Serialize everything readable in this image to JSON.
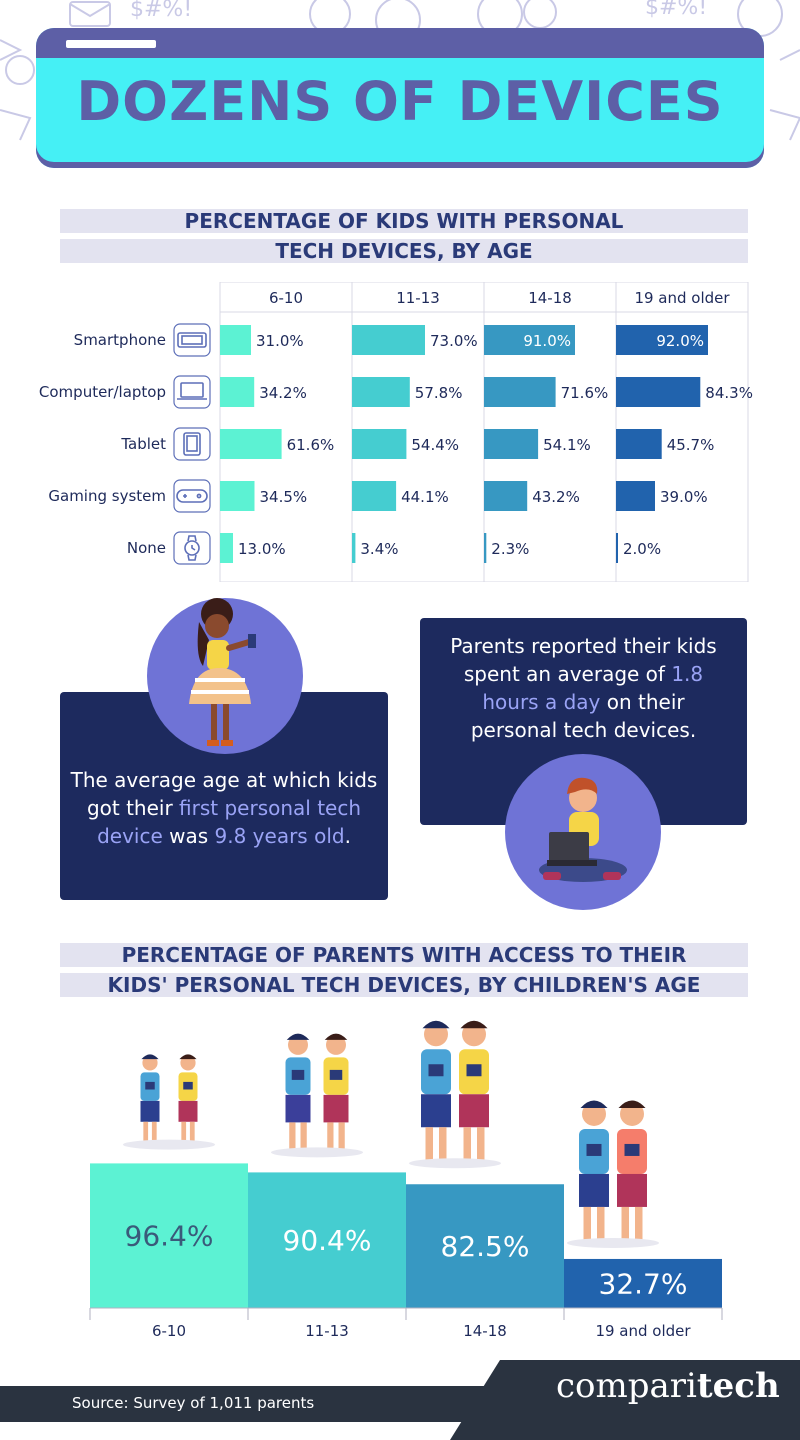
{
  "title": "DOZENS OF DEVICES",
  "section1": {
    "title_line1": "PERCENTAGE OF KIDS WITH PERSONAL",
    "title_line2": "TECH DEVICES, BY AGE"
  },
  "callout_left": {
    "text_a": "The average age at which kids",
    "text_b": "got their ",
    "highlight_a": "first personal tech",
    "highlight_b": "device",
    "text_c": " was ",
    "highlight_c": "9.8 years old",
    "text_d": "."
  },
  "callout_right": {
    "text_a": "Parents reported their kids",
    "text_b": "spent an average of ",
    "highlight_a": "1.8",
    "highlight_b": "hours a day",
    "text_c": " on their",
    "text_d": "personal tech devices."
  },
  "section2": {
    "title_line1": "PERCENTAGE OF PARENTS WITH ACCESS TO THEIR",
    "title_line2": "KIDS' PERSONAL TECH DEVICES, BY CHILDREN'S AGE"
  },
  "chart_data": [
    {
      "type": "bar",
      "orientation": "horizontal",
      "groups": [
        "6-10",
        "11-13",
        "14-18",
        "19 and older"
      ],
      "categories": [
        "Smartphone",
        "Computer/laptop",
        "Tablet",
        "Gaming system",
        "None"
      ],
      "category_icons": [
        "smartphone-icon",
        "laptop-icon",
        "tablet-icon",
        "gamepad-icon",
        "smartwatch-icon"
      ],
      "series": [
        {
          "name": "6-10",
          "values": [
            31.0,
            34.2,
            61.6,
            34.5,
            13.0
          ],
          "labels": [
            "31.0%",
            "34.2%",
            "61.6%",
            "34.5%",
            "13.0%"
          ],
          "color": "#5cf2d3"
        },
        {
          "name": "11-13",
          "values": [
            73.0,
            57.8,
            54.4,
            44.1,
            3.4
          ],
          "labels": [
            "73.0%",
            "57.8%",
            "54.4%",
            "44.1%",
            "3.4%"
          ],
          "color": "#45cdd0"
        },
        {
          "name": "14-18",
          "values": [
            91.0,
            71.6,
            54.1,
            43.2,
            2.3
          ],
          "labels": [
            "91.0%",
            "71.6%",
            "54.1%",
            "43.2%",
            "2.3%"
          ],
          "color": "#3798c2"
        },
        {
          "name": "19 and older",
          "values": [
            92.0,
            84.3,
            45.7,
            39.0,
            2.0
          ],
          "labels": [
            "92.0%",
            "84.3%",
            "45.7%",
            "39.0%",
            "2.0%"
          ],
          "color": "#2163ad"
        }
      ],
      "xlim": [
        0,
        100
      ]
    },
    {
      "type": "bar",
      "categories": [
        "6-10",
        "11-13",
        "14-18",
        "19 and older"
      ],
      "values": [
        96.4,
        90.4,
        82.5,
        32.7
      ],
      "labels": [
        "96.4%",
        "90.4%",
        "82.5%",
        "32.7%"
      ],
      "colors": [
        "#5cf2d3",
        "#45cdd0",
        "#3798c2",
        "#2163ad"
      ],
      "ylim": [
        0,
        100
      ]
    }
  ],
  "footer": {
    "source": "Source: Survey of 1,011 parents",
    "brand_a": "compari",
    "brand_b": "tech"
  }
}
